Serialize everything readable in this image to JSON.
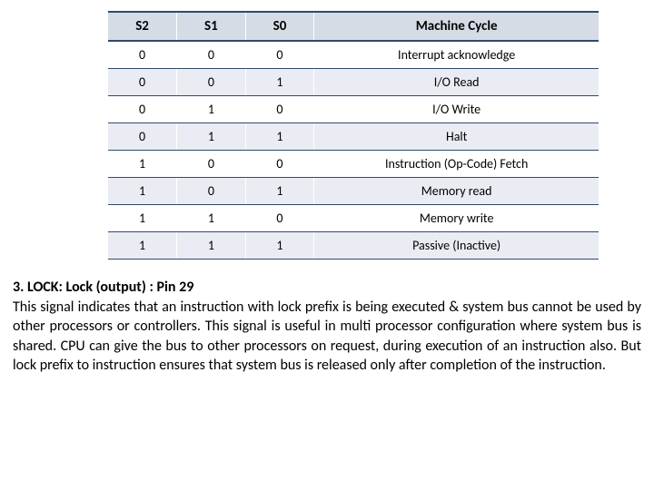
{
  "table": {
    "columns": [
      "S2",
      "S1",
      "S0",
      "Machine Cycle"
    ],
    "header_bg": "#d5dce5",
    "row_alt_bg": "#e9edf3",
    "row_bg": "#ffffff",
    "border_color": "#2e4a6b",
    "font_size_header": 15,
    "font_size_cell": 14,
    "rows": [
      {
        "s2": "0",
        "s1": "0",
        "s0": "0",
        "cycle": "Interrupt acknowledge"
      },
      {
        "s2": "0",
        "s1": "0",
        "s0": "1",
        "cycle": "I/O Read"
      },
      {
        "s2": "0",
        "s1": "1",
        "s0": "0",
        "cycle": "I/O Write"
      },
      {
        "s2": "0",
        "s1": "1",
        "s0": "1",
        "cycle": "Halt"
      },
      {
        "s2": "1",
        "s1": "0",
        "s0": "0",
        "cycle": "Instruction (Op-Code) Fetch"
      },
      {
        "s2": "1",
        "s1": "0",
        "s0": "1",
        "cycle": "Memory read"
      },
      {
        "s2": "1",
        "s1": "1",
        "s0": "0",
        "cycle": "Memory write"
      },
      {
        "s2": "1",
        "s1": "1",
        "s0": "1",
        "cycle": "Passive (Inactive)"
      }
    ]
  },
  "paragraph": {
    "heading": "3. LOCK: Lock (output) : Pin 29",
    "body": "This signal indicates that an instruction with lock prefix is being executed & system bus cannot be used by other processors or controllers. This signal is useful in multi processor configuration where system bus is shared. CPU can give the bus to other processors on request, during execution of an instruction also. But lock prefix to instruction ensures that system bus is released only after completion of the instruction."
  },
  "colors": {
    "background": "#ffffff",
    "text": "#000000"
  }
}
